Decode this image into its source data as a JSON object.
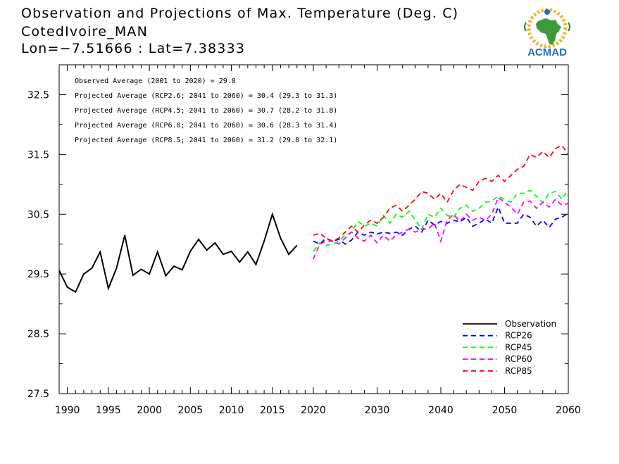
{
  "header": {
    "title": "Observation and Projections of Max. Temperature (Deg. C)",
    "location": "CotedIvoire_MAN",
    "coords": "Lon=−7.51666 : Lat=7.38333"
  },
  "logo": {
    "text": "ACMAD",
    "icon": "africa-map-logo-icon"
  },
  "chart_data": {
    "type": "line",
    "title": "Observation and Projections of Max. Temperature (Deg. C)",
    "xlabel": "",
    "ylabel": "",
    "grid": false,
    "legend_position": "bottom-right",
    "ylim": [
      27.5,
      33.0
    ],
    "x_segments": [
      {
        "range": [
          1989,
          2020
        ],
        "ticks": [
          1990,
          1995,
          2000,
          2005,
          2010,
          2015,
          2020
        ]
      },
      {
        "range": [
          2020,
          2060
        ],
        "ticks": [
          2030,
          2040,
          2050,
          2060
        ]
      }
    ],
    "y_ticks": [
      27.5,
      28.5,
      29.5,
      30.5,
      31.5,
      32.5
    ],
    "annotations": [
      "Observed Average (2001 to 2020) = 29.8",
      "Projected Average (RCP2.6; 2041 to 2060) = 30.4 (29.3 to 31.3)",
      "Projected Average (RCP4.5; 2041 to 2060) = 30.7 (28.2 to 31.8)",
      "Projected Average (RCP6.0; 2041 to 2060) = 30.6 (28.3 to 31.4)",
      "Projected Average (RCP8.5; 2041 to 2060) = 31.2 (29.8 to 32.1)"
    ],
    "series": [
      {
        "name": "Observation",
        "color": "#000000",
        "dash": "solid",
        "x_start": 1989,
        "values": [
          29.56,
          29.28,
          29.2,
          29.5,
          29.6,
          29.87,
          29.26,
          29.6,
          30.15,
          29.48,
          29.58,
          29.5,
          29.87,
          29.47,
          29.63,
          29.57,
          29.88,
          30.08,
          29.9,
          30.02,
          29.83,
          29.88,
          29.7,
          29.87,
          29.66,
          30.05,
          30.5,
          30.1,
          29.83,
          29.98
        ]
      },
      {
        "name": "RCP26",
        "color": "#0000ff",
        "dash": "dashed",
        "x_start": 2020,
        "values": [
          30.05,
          30.0,
          30.1,
          30.05,
          30.08,
          30.0,
          30.07,
          30.2,
          30.15,
          30.2,
          30.17,
          30.2,
          30.18,
          30.2,
          30.15,
          30.25,
          30.3,
          30.2,
          30.4,
          30.32,
          30.38,
          30.35,
          30.4,
          30.37,
          30.45,
          30.3,
          30.35,
          30.42,
          30.35,
          30.62,
          30.35,
          30.35,
          30.35,
          30.5,
          30.45,
          30.3,
          30.4,
          30.28,
          30.42,
          30.45,
          30.52
        ]
      },
      {
        "name": "RCP45",
        "color": "#00ff00",
        "dash": "dashed",
        "x_start": 2020,
        "values": [
          29.88,
          30.02,
          29.98,
          30.0,
          30.05,
          30.15,
          30.2,
          30.38,
          30.3,
          30.35,
          30.3,
          30.48,
          30.35,
          30.5,
          30.45,
          30.55,
          30.4,
          30.25,
          30.5,
          30.45,
          30.6,
          30.48,
          30.45,
          30.6,
          30.65,
          30.55,
          30.6,
          30.7,
          30.72,
          30.8,
          30.75,
          30.7,
          30.85,
          30.85,
          30.9,
          30.8,
          30.7,
          30.85,
          30.88,
          30.75,
          30.92
        ]
      },
      {
        "name": "RCP60",
        "color": "#ff00ff",
        "dash": "dashed",
        "x_start": 2020,
        "values": [
          29.75,
          30.0,
          30.05,
          30.05,
          30.0,
          30.1,
          30.2,
          30.1,
          30.05,
          30.15,
          30.02,
          30.15,
          30.05,
          30.15,
          30.2,
          30.25,
          30.2,
          30.25,
          30.25,
          30.35,
          30.05,
          30.4,
          30.5,
          30.38,
          30.5,
          30.4,
          30.45,
          30.4,
          30.5,
          30.78,
          30.7,
          30.62,
          30.5,
          30.7,
          30.72,
          30.6,
          30.7,
          30.62,
          30.75,
          30.65,
          30.68
        ]
      },
      {
        "name": "RCP85",
        "color": "#ff0000",
        "dash": "dashed",
        "x_start": 2020,
        "values": [
          30.15,
          30.18,
          30.1,
          30.05,
          30.1,
          30.2,
          30.3,
          30.2,
          30.32,
          30.4,
          30.35,
          30.45,
          30.6,
          30.65,
          30.55,
          30.65,
          30.75,
          30.88,
          30.85,
          30.75,
          30.85,
          30.7,
          30.9,
          31.0,
          30.95,
          30.9,
          31.05,
          31.1,
          31.05,
          31.15,
          31.05,
          31.15,
          31.25,
          31.3,
          31.5,
          31.45,
          31.55,
          31.45,
          31.6,
          31.65,
          31.5
        ]
      }
    ]
  }
}
